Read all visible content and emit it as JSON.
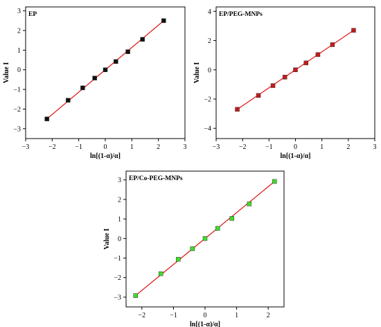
{
  "chart_data": [
    {
      "type": "line",
      "title": "EP",
      "xlabel": "ln[(1-α)/α]",
      "ylabel": "Value I",
      "xlim": [
        -3,
        3
      ],
      "ylim": [
        -3.5,
        3.2
      ],
      "xticks": [
        -3,
        -2,
        -1,
        0,
        1,
        2,
        3
      ],
      "yticks": [
        -3,
        -2,
        -1,
        0,
        1,
        2,
        3
      ],
      "marker_color": "#111111",
      "line_color": "#e02020",
      "points": [
        {
          "x": -2.2,
          "y": -2.5
        },
        {
          "x": -1.4,
          "y": -1.55
        },
        {
          "x": -0.85,
          "y": -0.92
        },
        {
          "x": -0.4,
          "y": -0.42
        },
        {
          "x": 0.0,
          "y": 0.0
        },
        {
          "x": 0.4,
          "y": 0.42
        },
        {
          "x": 0.85,
          "y": 0.92
        },
        {
          "x": 1.4,
          "y": 1.55
        },
        {
          "x": 2.2,
          "y": 2.5
        }
      ]
    },
    {
      "type": "line",
      "title": "EP/PEG-MNPs",
      "xlabel": "ln[(1-α)/α]",
      "ylabel": "Value I",
      "xlim": [
        -3,
        3
      ],
      "ylim": [
        -4.7,
        4.3
      ],
      "xticks": [
        -3,
        -2,
        -1,
        0,
        1,
        2,
        3
      ],
      "yticks": [
        -4,
        -2,
        0,
        2,
        4
      ],
      "marker_color": "#c41a1a",
      "line_color": "#e02020",
      "points": [
        {
          "x": -2.2,
          "y": -2.7
        },
        {
          "x": -1.4,
          "y": -1.75
        },
        {
          "x": -0.85,
          "y": -1.08
        },
        {
          "x": -0.4,
          "y": -0.5
        },
        {
          "x": 0.0,
          "y": 0.0
        },
        {
          "x": 0.4,
          "y": 0.47
        },
        {
          "x": 0.85,
          "y": 1.04
        },
        {
          "x": 1.4,
          "y": 1.72
        },
        {
          "x": 2.2,
          "y": 2.7
        }
      ]
    },
    {
      "type": "line",
      "title": "EP/Co-PEG-MNPs",
      "xlabel": "ln[(1-α)/α]",
      "ylabel": "Value I",
      "xlim": [
        -2.5,
        2.5
      ],
      "ylim": [
        -3.5,
        3.45
      ],
      "xticks": [
        -2,
        -1,
        0,
        1,
        2
      ],
      "yticks": [
        -3,
        -2,
        -1,
        0,
        1,
        2,
        3
      ],
      "marker_color": "#3fdc2a",
      "line_color": "#e02020",
      "points": [
        {
          "x": -2.2,
          "y": -2.92
        },
        {
          "x": -1.4,
          "y": -1.8
        },
        {
          "x": -0.85,
          "y": -1.06
        },
        {
          "x": -0.4,
          "y": -0.52
        },
        {
          "x": 0.0,
          "y": 0.0
        },
        {
          "x": 0.4,
          "y": 0.52
        },
        {
          "x": 0.85,
          "y": 1.03
        },
        {
          "x": 1.4,
          "y": 1.77
        },
        {
          "x": 2.2,
          "y": 2.92
        }
      ]
    }
  ]
}
